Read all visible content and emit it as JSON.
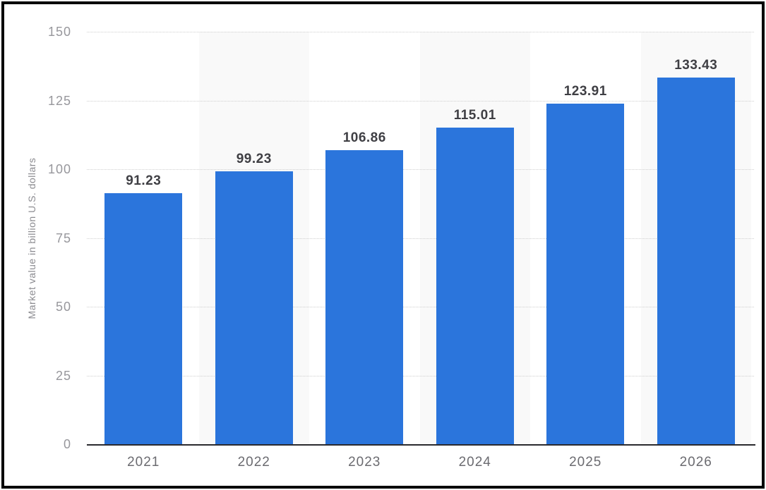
{
  "chart_data": {
    "type": "bar",
    "categories": [
      "2021",
      "2022",
      "2023",
      "2024",
      "2025",
      "2026"
    ],
    "values": [
      91.23,
      99.23,
      106.86,
      115.01,
      123.91,
      133.43
    ],
    "value_labels": [
      "91.23",
      "99.23",
      "106.86",
      "115.01",
      "123.91",
      "133.43"
    ],
    "title": "",
    "xlabel": "",
    "ylabel": "Market value in billion U.S. dollars",
    "ylim": [
      0,
      150
    ],
    "yticks": [
      0,
      25,
      50,
      75,
      100,
      125,
      150
    ],
    "ytick_labels": [
      "0",
      "25",
      "50",
      "75",
      "100",
      "125",
      "150"
    ],
    "grid": "horizontal-dotted",
    "legend": "none",
    "bar_color": "#2b75dc",
    "stripe_color": "#f9f9f9",
    "axis_color": "#2a2a2e",
    "striped_columns": [
      1,
      3,
      5
    ]
  }
}
